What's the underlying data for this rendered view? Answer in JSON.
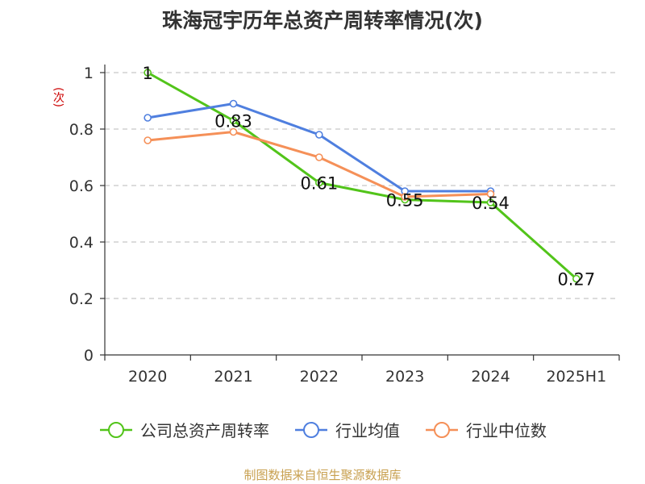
{
  "title": "珠海冠宇历年总资产周转率情况(次)",
  "y_unit": "(次)",
  "source": "制图数据来自恒生聚源数据库",
  "chart_data": {
    "type": "line",
    "categories": [
      "2020",
      "2021",
      "2022",
      "2023",
      "2024",
      "2025H1"
    ],
    "ylim": [
      0,
      1
    ],
    "yticks": [
      0,
      0.2,
      0.4,
      0.6,
      0.8,
      1
    ],
    "ytick_labels": [
      "0",
      "0.2",
      "0.4",
      "0.6",
      "0.8",
      "1"
    ],
    "grid": true,
    "legend_position": "bottom",
    "series": [
      {
        "name": "公司总资产周转率",
        "color": "#52c41a",
        "values": [
          1.0,
          0.83,
          0.61,
          0.55,
          0.54,
          0.27
        ],
        "labels": [
          "1",
          "0.83",
          "0.61",
          "0.55",
          "0.54",
          "0.27"
        ]
      },
      {
        "name": "行业均值",
        "color": "#4f7fdf",
        "values": [
          0.84,
          0.89,
          0.78,
          0.58,
          0.58,
          null
        ]
      },
      {
        "name": "行业中位数",
        "color": "#f59058",
        "values": [
          0.76,
          0.79,
          0.7,
          0.56,
          0.57,
          null
        ]
      }
    ]
  }
}
